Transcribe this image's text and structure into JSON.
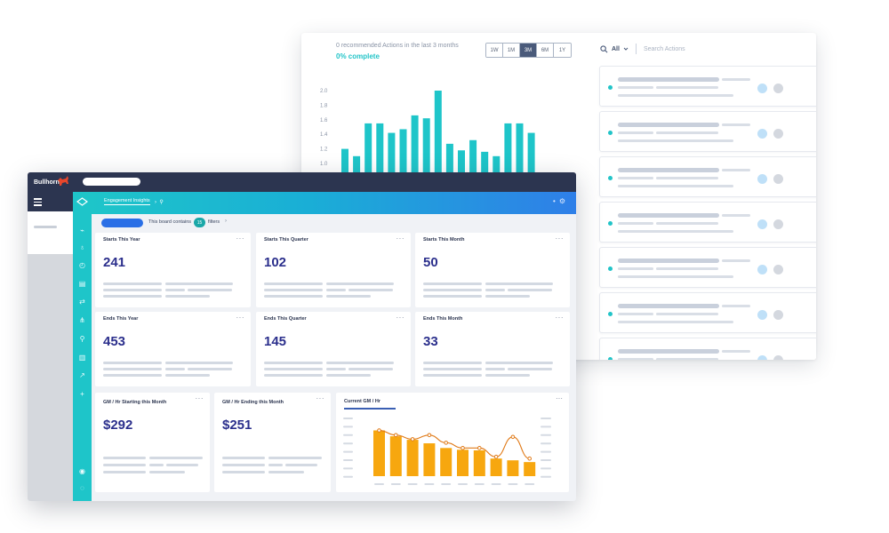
{
  "back_window": {
    "recommended_text": "0 recommended Actions in the last 3 months",
    "complete_text": "0% complete",
    "range_buttons": [
      {
        "label": "1W",
        "active": false
      },
      {
        "label": "1M",
        "active": false
      },
      {
        "label": "3M",
        "active": true
      },
      {
        "label": "6M",
        "active": false
      },
      {
        "label": "1Y",
        "active": false
      }
    ],
    "filter_label": "All",
    "search_placeholder": "Search Actions",
    "chart_data": {
      "type": "bar",
      "y_ticks": [
        "2.0",
        "1.8",
        "1.6",
        "1.4",
        "1.2",
        "1.0"
      ],
      "ylim": [
        1.0,
        2.0
      ],
      "values": [
        1.2,
        1.1,
        1.55,
        1.55,
        1.42,
        1.47,
        1.66,
        1.62,
        2.0,
        1.27,
        1.18,
        1.32,
        1.16,
        1.1,
        1.55,
        1.55,
        1.42
      ],
      "color": "#1ec5c9"
    },
    "action_card_count": 7,
    "colors": {
      "teal": "#22c4c8",
      "blue_circle": "#bfe0f8",
      "grey_circle": "#d4d8df"
    }
  },
  "front_window": {
    "brand": "Bullhorn",
    "app_tab": "Engagement Insights",
    "filter_text": "This board contains",
    "filter_count": "15",
    "filter_label": "filters",
    "kpis": [
      {
        "title": "Starts This Year",
        "value": "241"
      },
      {
        "title": "Starts This Quarter",
        "value": "102"
      },
      {
        "title": "Starts This Month",
        "value": "50"
      },
      {
        "title": "Ends This Year",
        "value": "453"
      },
      {
        "title": "Ends This Quarter",
        "value": "145"
      },
      {
        "title": "Ends This Month",
        "value": "33"
      }
    ],
    "gm_cards": [
      {
        "title": "GM / Hr Starting this Month",
        "value": "$292"
      },
      {
        "title": "GM / Hr Ending this Month",
        "value": "$251"
      }
    ],
    "combo_chart": {
      "title": "Current GM / Hr",
      "chart_data": {
        "type": "bar",
        "bar_values": [
          0.78,
          0.68,
          0.62,
          0.56,
          0.48,
          0.45,
          0.44,
          0.3,
          0.27,
          0.24
        ],
        "line_values": [
          0.78,
          0.7,
          0.63,
          0.7,
          0.57,
          0.48,
          0.48,
          0.33,
          0.67,
          0.3
        ],
        "bar_color": "#f7a70f",
        "line_color": "#e07a18"
      }
    },
    "more_label": "···",
    "colors": {
      "kpi_value": "#2b2f8c",
      "rail": "#1ec5c9",
      "topbar": "#2c3550"
    }
  }
}
